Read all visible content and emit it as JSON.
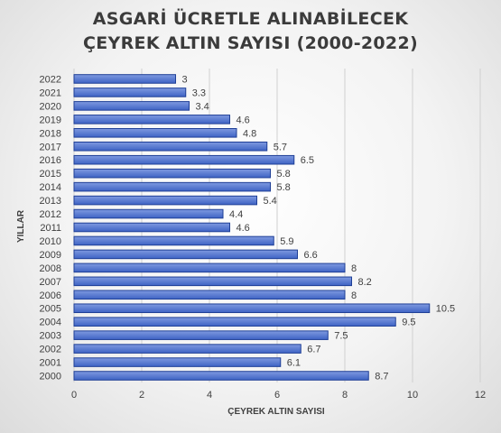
{
  "chart_data": {
    "type": "bar",
    "orientation": "horizontal",
    "title_lines": [
      "ASGARİ ÜCRETLE ALINABİLECEK",
      "ÇEYREK ALTIN SAYISI (2000-2022)"
    ],
    "xlabel": "ÇEYREK ALTIN SAYISI",
    "ylabel": "YILLAR",
    "xlim": [
      0,
      12
    ],
    "x_ticks": [
      "0",
      "2",
      "4",
      "6",
      "8",
      "10",
      "12"
    ],
    "grid": true,
    "legend": "none",
    "categories": [
      "2022",
      "2021",
      "2020",
      "2019",
      "2018",
      "2017",
      "2016",
      "2015",
      "2014",
      "2013",
      "2012",
      "2011",
      "2010",
      "2009",
      "2008",
      "2007",
      "2006",
      "2005",
      "2004",
      "2003",
      "2002",
      "2001",
      "2000"
    ],
    "values": [
      3,
      3.3,
      3.4,
      4.6,
      4.8,
      5.7,
      6.5,
      5.8,
      5.8,
      5.4,
      4.4,
      4.6,
      5.9,
      6.6,
      8,
      8.2,
      8,
      10.5,
      9.5,
      7.5,
      6.7,
      6.1,
      8.7
    ],
    "value_labels": [
      "3",
      "3.3",
      "3.4",
      "4.6",
      "4.8",
      "5.7",
      "6.5",
      "5.8",
      "5.8",
      "5.4",
      "4.4",
      "4.6",
      "5.9",
      "6.6",
      "8",
      "8.2",
      "8",
      "10.5",
      "9.5",
      "7.5",
      "6.7",
      "6.1",
      "8.7"
    ],
    "colors": {
      "bar_fill_top": "#7f9ae0",
      "bar_fill_bottom": "#3e63c4",
      "bar_stroke": "#1f3f96",
      "grid": "#d0d0d0",
      "text": "#404040"
    }
  }
}
